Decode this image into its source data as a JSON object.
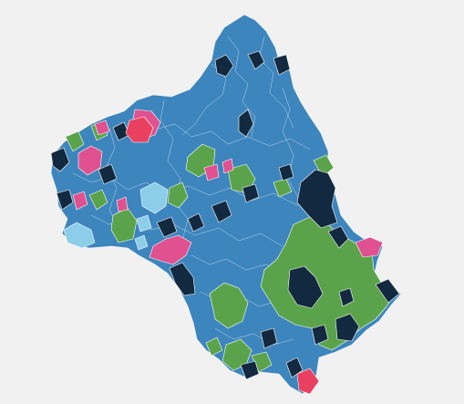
{
  "map": {
    "background": "#f1f1f1",
    "border_color": "#ffffff",
    "categories": [
      {
        "key": "blue",
        "color": "#3d85bd"
      },
      {
        "key": "dark",
        "color": "#12293f"
      },
      {
        "key": "green",
        "color": "#5aa34a"
      },
      {
        "key": "pink",
        "color": "#e0518f"
      },
      {
        "key": "red",
        "color": "#ea4060"
      },
      {
        "key": "light-blue",
        "color": "#8ccde9"
      }
    ]
  }
}
